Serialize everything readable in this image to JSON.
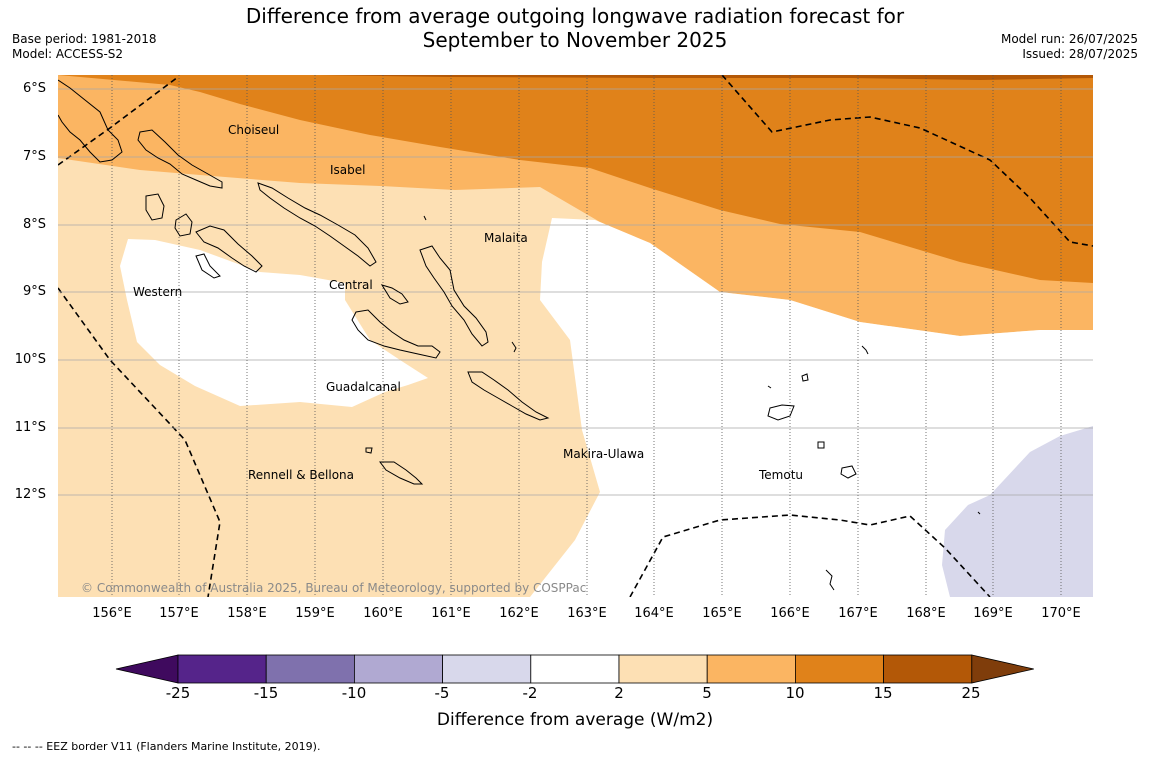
{
  "header": {
    "title_line1": "Difference from average outgoing longwave radiation forecast for",
    "title_line2": "September to November 2025",
    "base_period": "Base period: 1981-2018",
    "model": "Model: ACCESS-S2",
    "model_run": "Model run: 26/07/2025",
    "issued": "Issued: 28/07/2025"
  },
  "map": {
    "lat_labels": [
      "6°S",
      "7°S",
      "8°S",
      "9°S",
      "10°S",
      "11°S",
      "12°S"
    ],
    "lon_labels": [
      "156°E",
      "157°E",
      "158°E",
      "159°E",
      "160°E",
      "161°E",
      "162°E",
      "163°E",
      "164°E",
      "165°E",
      "166°E",
      "167°E",
      "168°E",
      "169°E",
      "170°E"
    ],
    "provinces": [
      "Choiseul",
      "Isabel",
      "Malaita",
      "Western",
      "Central",
      "Guadalcanal",
      "Makira-Ulawa",
      "Rennell & Bellona",
      "Temotu"
    ],
    "copyright": "© Commonwealth of Australia 2025, Bureau of Meteorology, supported by COSPPac"
  },
  "colorbar": {
    "ticks": [
      "-25",
      "-15",
      "-10",
      "-5",
      "-2",
      "2",
      "5",
      "10",
      "15",
      "25"
    ],
    "colors": [
      "#3f0a5e",
      "#55248a",
      "#7f71ad",
      "#b0a9d2",
      "#d8d8eb",
      "#ffffff",
      "#fde0b4",
      "#fbb562",
      "#e0821a",
      "#b35807",
      "#7f3d0b"
    ],
    "label": "Difference from average (W/m2)"
  },
  "legend_note": "--  --  -- EEZ border V11 (Flanders Marine Institute, 2019)."
}
